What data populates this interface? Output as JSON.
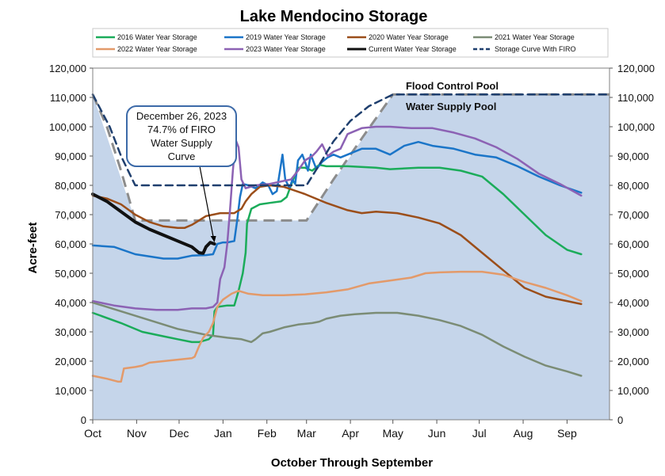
{
  "chart_data": {
    "type": "line",
    "title": "Lake Mendocino Storage",
    "xlabel": "October Through September",
    "ylabel": "Acre-feet",
    "ylim": [
      0,
      120000
    ],
    "yticks": [
      0,
      10000,
      20000,
      30000,
      40000,
      50000,
      60000,
      70000,
      80000,
      90000,
      100000,
      110000,
      120000
    ],
    "ytick_labels": [
      "0",
      "10,000",
      "20,000",
      "30,000",
      "40,000",
      "50,000",
      "60,000",
      "70,000",
      "80,000",
      "90,000",
      "100,000",
      "110,000",
      "120,000"
    ],
    "x_unit": "day of water year (0 = Oct 1)",
    "xlim": [
      0,
      365
    ],
    "xticks": [
      0,
      31,
      61,
      92,
      123,
      151,
      182,
      212,
      243,
      273,
      304,
      335
    ],
    "xtick_labels": [
      "Oct",
      "Nov",
      "Dec",
      "Jan",
      "Feb",
      "Mar",
      "Apr",
      "May",
      "Jun",
      "Jul",
      "Aug",
      "Sep"
    ],
    "grid": false,
    "legend_position": "top",
    "pool_region": {
      "name": "Water supply pool (shaded)",
      "color": "#c5d5ea",
      "points": [
        [
          0,
          111000
        ],
        [
          30,
          68000
        ],
        [
          137,
          68000
        ],
        [
          151,
          68000
        ],
        [
          212,
          111000
        ],
        [
          365,
          111000
        ]
      ]
    },
    "series": [
      {
        "name": "2016 Water Year Storage",
        "color": "#1bac5a",
        "width": 2.5,
        "dash": "",
        "points": [
          [
            0,
            36500
          ],
          [
            20,
            33000
          ],
          [
            35,
            30000
          ],
          [
            50,
            28500
          ],
          [
            60,
            27500
          ],
          [
            70,
            26500
          ],
          [
            75,
            26500
          ],
          [
            82,
            27500
          ],
          [
            85,
            29000
          ],
          [
            86,
            37000
          ],
          [
            88,
            38500
          ],
          [
            95,
            39000
          ],
          [
            100,
            39000
          ],
          [
            103,
            44000
          ],
          [
            106,
            50000
          ],
          [
            108,
            57000
          ],
          [
            109,
            67000
          ],
          [
            112,
            72000
          ],
          [
            118,
            73500
          ],
          [
            125,
            74000
          ],
          [
            133,
            74500
          ],
          [
            137,
            76000
          ],
          [
            140,
            80000
          ],
          [
            145,
            86000
          ],
          [
            150,
            86000
          ],
          [
            155,
            85000
          ],
          [
            160,
            87000
          ],
          [
            165,
            86500
          ],
          [
            180,
            86500
          ],
          [
            200,
            86000
          ],
          [
            210,
            85500
          ],
          [
            230,
            86000
          ],
          [
            245,
            86000
          ],
          [
            260,
            85000
          ],
          [
            275,
            83000
          ],
          [
            290,
            77000
          ],
          [
            305,
            70000
          ],
          [
            320,
            63000
          ],
          [
            335,
            58000
          ],
          [
            345,
            56500
          ]
        ]
      },
      {
        "name": "2019 Water Year Storage",
        "color": "#1b75c8",
        "width": 2.5,
        "dash": "",
        "points": [
          [
            0,
            59500
          ],
          [
            15,
            59000
          ],
          [
            30,
            56500
          ],
          [
            50,
            55000
          ],
          [
            60,
            55000
          ],
          [
            70,
            56000
          ],
          [
            80,
            56200
          ],
          [
            85,
            56500
          ],
          [
            88,
            60000
          ],
          [
            92,
            60500
          ],
          [
            95,
            60500
          ],
          [
            100,
            61000
          ],
          [
            102,
            68000
          ],
          [
            104,
            76000
          ],
          [
            106,
            80500
          ],
          [
            110,
            80000
          ],
          [
            115,
            79000
          ],
          [
            120,
            81000
          ],
          [
            124,
            80000
          ],
          [
            127,
            77000
          ],
          [
            130,
            78000
          ],
          [
            134,
            90500
          ],
          [
            136,
            82000
          ],
          [
            139,
            79000
          ],
          [
            141,
            82000
          ],
          [
            143,
            80500
          ],
          [
            145,
            88500
          ],
          [
            148,
            90500
          ],
          [
            150,
            88000
          ],
          [
            152,
            85000
          ],
          [
            154,
            90500
          ],
          [
            158,
            85500
          ],
          [
            162,
            88000
          ],
          [
            166,
            89500
          ],
          [
            170,
            90500
          ],
          [
            175,
            89500
          ],
          [
            180,
            90500
          ],
          [
            190,
            92500
          ],
          [
            200,
            92500
          ],
          [
            210,
            90500
          ],
          [
            220,
            93500
          ],
          [
            230,
            94800
          ],
          [
            240,
            93500
          ],
          [
            255,
            92500
          ],
          [
            270,
            90500
          ],
          [
            285,
            89500
          ],
          [
            300,
            86500
          ],
          [
            315,
            83000
          ],
          [
            330,
            80000
          ],
          [
            345,
            77500
          ]
        ]
      },
      {
        "name": "2020 Water Year Storage",
        "color": "#9b4e1a",
        "width": 2.5,
        "dash": "",
        "points": [
          [
            0,
            76500
          ],
          [
            10,
            75500
          ],
          [
            20,
            73500
          ],
          [
            30,
            70000
          ],
          [
            40,
            67500
          ],
          [
            50,
            66000
          ],
          [
            60,
            65500
          ],
          [
            65,
            65500
          ],
          [
            70,
            66500
          ],
          [
            75,
            68000
          ],
          [
            80,
            69500
          ],
          [
            85,
            70000
          ],
          [
            90,
            70500
          ],
          [
            100,
            70500
          ],
          [
            105,
            72000
          ],
          [
            108,
            74500
          ],
          [
            112,
            77000
          ],
          [
            118,
            79500
          ],
          [
            125,
            80000
          ],
          [
            135,
            79500
          ],
          [
            150,
            77000
          ],
          [
            165,
            74000
          ],
          [
            180,
            71500
          ],
          [
            190,
            70500
          ],
          [
            200,
            71000
          ],
          [
            215,
            70500
          ],
          [
            230,
            69000
          ],
          [
            245,
            67000
          ],
          [
            260,
            63000
          ],
          [
            275,
            57000
          ],
          [
            290,
            51000
          ],
          [
            305,
            45000
          ],
          [
            320,
            42000
          ],
          [
            335,
            40500
          ],
          [
            345,
            39500
          ]
        ]
      },
      {
        "name": "2021 Water Year Storage",
        "color": "#7b8c75",
        "width": 2.5,
        "dash": "",
        "points": [
          [
            0,
            40000
          ],
          [
            20,
            37000
          ],
          [
            40,
            34000
          ],
          [
            60,
            31000
          ],
          [
            80,
            29000
          ],
          [
            95,
            28000
          ],
          [
            105,
            27500
          ],
          [
            112,
            26500
          ],
          [
            115,
            27500
          ],
          [
            120,
            29500
          ],
          [
            125,
            30000
          ],
          [
            135,
            31500
          ],
          [
            145,
            32500
          ],
          [
            155,
            33000
          ],
          [
            160,
            33500
          ],
          [
            165,
            34500
          ],
          [
            175,
            35500
          ],
          [
            185,
            36000
          ],
          [
            200,
            36500
          ],
          [
            215,
            36500
          ],
          [
            230,
            35500
          ],
          [
            245,
            34000
          ],
          [
            260,
            32000
          ],
          [
            275,
            29000
          ],
          [
            290,
            25000
          ],
          [
            305,
            21500
          ],
          [
            320,
            18500
          ],
          [
            335,
            16500
          ],
          [
            345,
            15000
          ]
        ]
      },
      {
        "name": "2022 Water Year Storage",
        "color": "#e39a6a",
        "width": 2.5,
        "dash": "",
        "points": [
          [
            0,
            15000
          ],
          [
            10,
            14000
          ],
          [
            18,
            13000
          ],
          [
            20,
            13000
          ],
          [
            22,
            17500
          ],
          [
            30,
            18000
          ],
          [
            35,
            18500
          ],
          [
            40,
            19500
          ],
          [
            50,
            20000
          ],
          [
            60,
            20500
          ],
          [
            70,
            21000
          ],
          [
            72,
            21500
          ],
          [
            75,
            25000
          ],
          [
            78,
            28000
          ],
          [
            82,
            30000
          ],
          [
            85,
            33000
          ],
          [
            88,
            38500
          ],
          [
            92,
            41000
          ],
          [
            98,
            43000
          ],
          [
            103,
            44000
          ],
          [
            110,
            43000
          ],
          [
            120,
            42500
          ],
          [
            135,
            42500
          ],
          [
            150,
            42800
          ],
          [
            165,
            43500
          ],
          [
            180,
            44500
          ],
          [
            195,
            46500
          ],
          [
            210,
            47500
          ],
          [
            225,
            48500
          ],
          [
            235,
            50000
          ],
          [
            245,
            50300
          ],
          [
            260,
            50500
          ],
          [
            275,
            50500
          ],
          [
            290,
            49500
          ],
          [
            305,
            47000
          ],
          [
            320,
            45000
          ],
          [
            335,
            42500
          ],
          [
            345,
            40500
          ]
        ]
      },
      {
        "name": "2023 Water Year Storage",
        "color": "#8c62b4",
        "width": 2.5,
        "dash": "",
        "points": [
          [
            0,
            40500
          ],
          [
            15,
            39000
          ],
          [
            30,
            38000
          ],
          [
            45,
            37500
          ],
          [
            60,
            37500
          ],
          [
            70,
            38000
          ],
          [
            80,
            38000
          ],
          [
            85,
            38500
          ],
          [
            88,
            40000
          ],
          [
            90,
            48000
          ],
          [
            93,
            52000
          ],
          [
            95,
            60000
          ],
          [
            97,
            72000
          ],
          [
            99,
            85000
          ],
          [
            101,
            95500
          ],
          [
            103,
            93000
          ],
          [
            105,
            82000
          ],
          [
            108,
            79000
          ],
          [
            115,
            80000
          ],
          [
            125,
            80500
          ],
          [
            135,
            81500
          ],
          [
            140,
            82000
          ],
          [
            145,
            85000
          ],
          [
            150,
            88500
          ],
          [
            155,
            90000
          ],
          [
            158,
            91500
          ],
          [
            162,
            94000
          ],
          [
            166,
            90000
          ],
          [
            170,
            91500
          ],
          [
            175,
            92500
          ],
          [
            180,
            97500
          ],
          [
            190,
            99500
          ],
          [
            200,
            100000
          ],
          [
            210,
            100000
          ],
          [
            225,
            99500
          ],
          [
            240,
            99500
          ],
          [
            255,
            98000
          ],
          [
            270,
            96000
          ],
          [
            285,
            93000
          ],
          [
            300,
            89000
          ],
          [
            315,
            84000
          ],
          [
            330,
            80500
          ],
          [
            345,
            76500
          ]
        ]
      },
      {
        "name": "Current Water Year Storage",
        "color": "#111111",
        "width": 4,
        "dash": "",
        "points": [
          [
            0,
            77000
          ],
          [
            10,
            74500
          ],
          [
            20,
            71000
          ],
          [
            30,
            67500
          ],
          [
            40,
            65000
          ],
          [
            50,
            63000
          ],
          [
            60,
            61000
          ],
          [
            70,
            59000
          ],
          [
            75,
            57000
          ],
          [
            78,
            56800
          ],
          [
            80,
            59000
          ],
          [
            83,
            60500
          ],
          [
            86,
            60000
          ]
        ]
      },
      {
        "name": "Storage Curve With FIRO",
        "color": "#1f3f6e",
        "width": 2.5,
        "dash": "9,6",
        "points": [
          [
            0,
            111000
          ],
          [
            12,
            100000
          ],
          [
            20,
            90000
          ],
          [
            30,
            80000
          ],
          [
            92,
            80000
          ],
          [
            135,
            80000
          ],
          [
            151,
            80000
          ],
          [
            160,
            87000
          ],
          [
            170,
            95000
          ],
          [
            182,
            102000
          ],
          [
            195,
            107000
          ],
          [
            212,
            111000
          ],
          [
            365,
            111000
          ]
        ]
      }
    ],
    "gray_curve": {
      "name": "Storage Curve",
      "color": "#8c8c8c",
      "width": 3,
      "dash": "14,8",
      "points": [
        [
          0,
          111000
        ],
        [
          10,
          100000
        ],
        [
          20,
          85000
        ],
        [
          30,
          68000
        ],
        [
          137,
          68000
        ],
        [
          151,
          68000
        ],
        [
          170,
          82000
        ],
        [
          190,
          96000
        ],
        [
          212,
          111000
        ],
        [
          365,
          111000
        ]
      ]
    },
    "annotations": [
      {
        "text": "Flood Control Pool",
        "x": 220,
        "y": 114000,
        "bold": true
      },
      {
        "text": "Water Supply Pool",
        "x": 220,
        "y": 107000,
        "bold": true
      }
    ],
    "callout": {
      "lines": [
        "December 26, 2023",
        "74.7% of FIRO",
        "Water Supply",
        "Curve"
      ],
      "target": [
        86,
        60000
      ]
    }
  }
}
